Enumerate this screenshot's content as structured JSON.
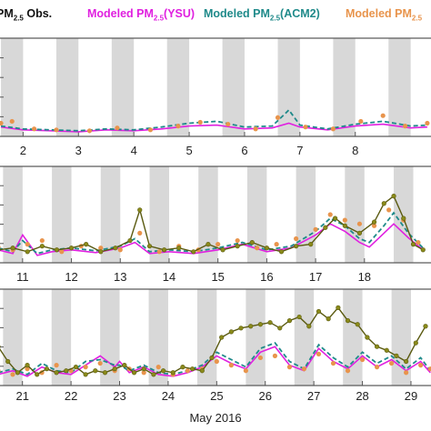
{
  "legend": {
    "obs_main": "PM",
    "obs_sub": "2.5",
    "obs_tail": " Obs.",
    "ysu_main": "Modeled PM",
    "ysu_sub": "2.5",
    "ysu_tail": "(YSU)",
    "acm2_main": "Modeled PM",
    "acm2_sub": "2.5",
    "acm2_tail": "(ACM2)",
    "obs2_main": "Modeled PM",
    "obs2_sub": "2.5"
  },
  "colors": {
    "obs_points": "#e8944c",
    "ysu": "#e020e0",
    "acm2": "#1f8a8a",
    "dark_obs": "#5a5a10",
    "dark_obs_fill": "#8a8a1a",
    "shade": "#d8d8d8",
    "frame": "#555555"
  },
  "xlabel": "May 2016",
  "chart_data": [
    {
      "type": "line",
      "panel": 1,
      "tick_labels": [
        "2",
        "3",
        "4",
        "5",
        "6",
        "7",
        "8"
      ],
      "day_start": 1.55,
      "day_end": 9.4,
      "ylim": [
        0,
        100
      ],
      "series": [
        {
          "key": "ysu",
          "x": [
            1.6,
            2.0,
            2.5,
            3.0,
            3.5,
            4.0,
            4.5,
            5.0,
            5.5,
            6.0,
            6.5,
            6.8,
            7.0,
            7.5,
            8.0,
            8.5,
            9.0,
            9.3
          ],
          "y": [
            8,
            5,
            4,
            3,
            5,
            4,
            6,
            9,
            10,
            6,
            7,
            12,
            8,
            5,
            9,
            11,
            7,
            8
          ]
        },
        {
          "key": "acm2",
          "x": [
            1.6,
            2.0,
            2.5,
            3.0,
            3.5,
            4.0,
            4.5,
            5.0,
            5.5,
            6.0,
            6.5,
            6.8,
            7.0,
            7.5,
            8.0,
            8.5,
            9.0,
            9.3
          ],
          "y": [
            9,
            6,
            5,
            4,
            6,
            5,
            8,
            12,
            14,
            8,
            9,
            26,
            10,
            6,
            11,
            14,
            9,
            10
          ]
        },
        {
          "key": "obs",
          "x": [
            1.6,
            1.8,
            2.2,
            2.6,
            3.2,
            3.7,
            4.3,
            4.8,
            5.2,
            5.7,
            6.2,
            6.6,
            7.1,
            7.6,
            8.1,
            8.5,
            8.9,
            9.3
          ],
          "y": [
            12,
            14,
            6,
            5,
            4,
            7,
            5,
            9,
            13,
            11,
            6,
            18,
            8,
            6,
            14,
            20,
            9,
            12
          ]
        }
      ]
    },
    {
      "type": "line",
      "panel": 2,
      "tick_labels": [
        "11",
        "12",
        "13",
        "14",
        "15",
        "16",
        "17",
        "18"
      ],
      "day_start": 10.5,
      "day_end": 19.4,
      "ylim": [
        0,
        100
      ],
      "series": [
        {
          "key": "ysu",
          "x": [
            10.5,
            10.8,
            11.0,
            11.3,
            11.6,
            12.0,
            12.5,
            13.0,
            13.3,
            13.6,
            14.0,
            14.5,
            15.0,
            15.5,
            16.0,
            16.5,
            17.0,
            17.3,
            17.6,
            17.9,
            18.1,
            18.4,
            18.6,
            18.9,
            19.2
          ],
          "y": [
            12,
            8,
            28,
            6,
            10,
            12,
            9,
            14,
            20,
            8,
            10,
            8,
            12,
            18,
            10,
            14,
            28,
            40,
            32,
            20,
            15,
            30,
            40,
            25,
            12
          ]
        },
        {
          "key": "acm2",
          "x": [
            10.5,
            10.8,
            11.0,
            11.3,
            11.6,
            12.0,
            12.5,
            13.0,
            13.3,
            13.6,
            14.0,
            14.5,
            15.0,
            15.5,
            16.0,
            16.5,
            17.0,
            17.3,
            17.6,
            17.9,
            18.1,
            18.4,
            18.6,
            18.9,
            19.2
          ],
          "y": [
            14,
            10,
            22,
            8,
            12,
            14,
            11,
            16,
            24,
            10,
            12,
            10,
            14,
            20,
            12,
            16,
            32,
            46,
            38,
            24,
            20,
            38,
            52,
            30,
            14
          ]
        },
        {
          "key": "obs",
          "x": [
            10.5,
            10.8,
            11.1,
            11.4,
            11.8,
            12.2,
            12.6,
            13.0,
            13.4,
            13.8,
            14.2,
            14.6,
            15.0,
            15.4,
            15.8,
            16.2,
            16.6,
            17.0,
            17.3,
            17.6,
            17.9,
            18.2,
            18.5,
            18.8,
            19.1
          ],
          "y": [
            15,
            12,
            18,
            22,
            10,
            16,
            14,
            12,
            30,
            10,
            16,
            12,
            18,
            22,
            14,
            18,
            24,
            34,
            50,
            44,
            40,
            38,
            55,
            44,
            20
          ]
        },
        {
          "key": "dark",
          "x": [
            10.5,
            10.8,
            11.1,
            11.4,
            11.7,
            12.0,
            12.3,
            12.6,
            12.9,
            13.2,
            13.4,
            13.6,
            13.9,
            14.2,
            14.5,
            14.8,
            15.1,
            15.4,
            15.7,
            16.0,
            16.3,
            16.6,
            16.9,
            17.2,
            17.4,
            17.6,
            17.9,
            18.2,
            18.4,
            18.6,
            18.8,
            19.0,
            19.2
          ],
          "y": [
            12,
            14,
            10,
            16,
            12,
            14,
            18,
            10,
            14,
            22,
            55,
            16,
            12,
            14,
            10,
            18,
            12,
            16,
            20,
            14,
            10,
            16,
            18,
            36,
            46,
            38,
            30,
            42,
            62,
            70,
            46,
            18,
            12
          ]
        }
      ]
    },
    {
      "type": "line",
      "panel": 3,
      "tick_labels": [
        "21",
        "22",
        "23",
        "24",
        "25",
        "26",
        "27",
        "28",
        "29"
      ],
      "day_start": 20.5,
      "day_end": 29.45,
      "ylim": [
        0,
        100
      ],
      "series": [
        {
          "key": "ysu",
          "x": [
            20.5,
            20.8,
            21.1,
            21.4,
            21.7,
            22.0,
            22.3,
            22.6,
            22.9,
            23.0,
            23.2,
            23.5,
            23.8,
            24.1,
            24.4,
            24.7,
            25.0,
            25.3,
            25.6,
            25.9,
            26.2,
            26.5,
            26.8,
            27.1,
            27.4,
            27.7,
            28.0,
            28.3,
            28.6,
            28.9,
            29.2,
            29.4
          ],
          "y": [
            10,
            14,
            8,
            18,
            12,
            10,
            20,
            30,
            18,
            24,
            12,
            18,
            10,
            8,
            12,
            18,
            30,
            22,
            16,
            34,
            40,
            20,
            14,
            38,
            24,
            16,
            30,
            18,
            26,
            14,
            24,
            12
          ]
        },
        {
          "key": "acm2",
          "x": [
            20.5,
            20.8,
            21.1,
            21.4,
            21.7,
            22.0,
            22.3,
            22.6,
            22.9,
            23.0,
            23.2,
            23.5,
            23.8,
            24.1,
            24.4,
            24.7,
            25.0,
            25.3,
            25.6,
            25.9,
            26.2,
            26.5,
            26.8,
            27.1,
            27.4,
            27.7,
            28.0,
            28.3,
            28.6,
            28.9,
            29.2,
            29.4
          ],
          "y": [
            12,
            16,
            10,
            22,
            14,
            12,
            24,
            26,
            20,
            20,
            14,
            20,
            12,
            10,
            14,
            20,
            34,
            26,
            18,
            38,
            44,
            24,
            16,
            42,
            28,
            18,
            34,
            22,
            30,
            16,
            28,
            14
          ]
        },
        {
          "key": "obs",
          "x": [
            20.5,
            20.8,
            21.1,
            21.4,
            21.7,
            22.0,
            22.3,
            22.6,
            22.9,
            23.2,
            23.5,
            23.8,
            24.1,
            24.4,
            24.7,
            25.0,
            25.3,
            25.6,
            25.9,
            26.2,
            26.5,
            26.8,
            27.1,
            27.4,
            27.7,
            28.0,
            28.3,
            28.6,
            28.9,
            29.2,
            29.4
          ],
          "y": [
            14,
            10,
            16,
            12,
            20,
            14,
            18,
            22,
            14,
            16,
            12,
            18,
            10,
            14,
            16,
            24,
            20,
            14,
            28,
            30,
            18,
            16,
            32,
            22,
            14,
            26,
            18,
            22,
            12,
            20,
            16
          ]
        },
        {
          "key": "dark",
          "x": [
            20.5,
            20.7,
            20.9,
            21.1,
            21.3,
            21.5,
            21.7,
            21.9,
            22.1,
            22.3,
            22.5,
            22.7,
            22.9,
            23.1,
            23.3,
            23.5,
            23.7,
            23.9,
            24.1,
            24.3,
            24.5,
            24.7,
            24.9,
            25.1,
            25.3,
            25.5,
            25.7,
            25.9,
            26.1,
            26.3,
            26.5,
            26.7,
            26.9,
            27.1,
            27.3,
            27.5,
            27.7,
            27.9,
            28.1,
            28.3,
            28.5,
            28.7,
            28.9,
            29.1,
            29.3
          ],
          "y": [
            40,
            24,
            12,
            20,
            10,
            16,
            12,
            14,
            18,
            10,
            14,
            12,
            16,
            20,
            12,
            16,
            10,
            14,
            12,
            18,
            16,
            14,
            28,
            50,
            56,
            60,
            62,
            64,
            66,
            60,
            68,
            72,
            62,
            78,
            70,
            82,
            68,
            64,
            50,
            40,
            36,
            30,
            24,
            44,
            62
          ]
        }
      ]
    }
  ]
}
